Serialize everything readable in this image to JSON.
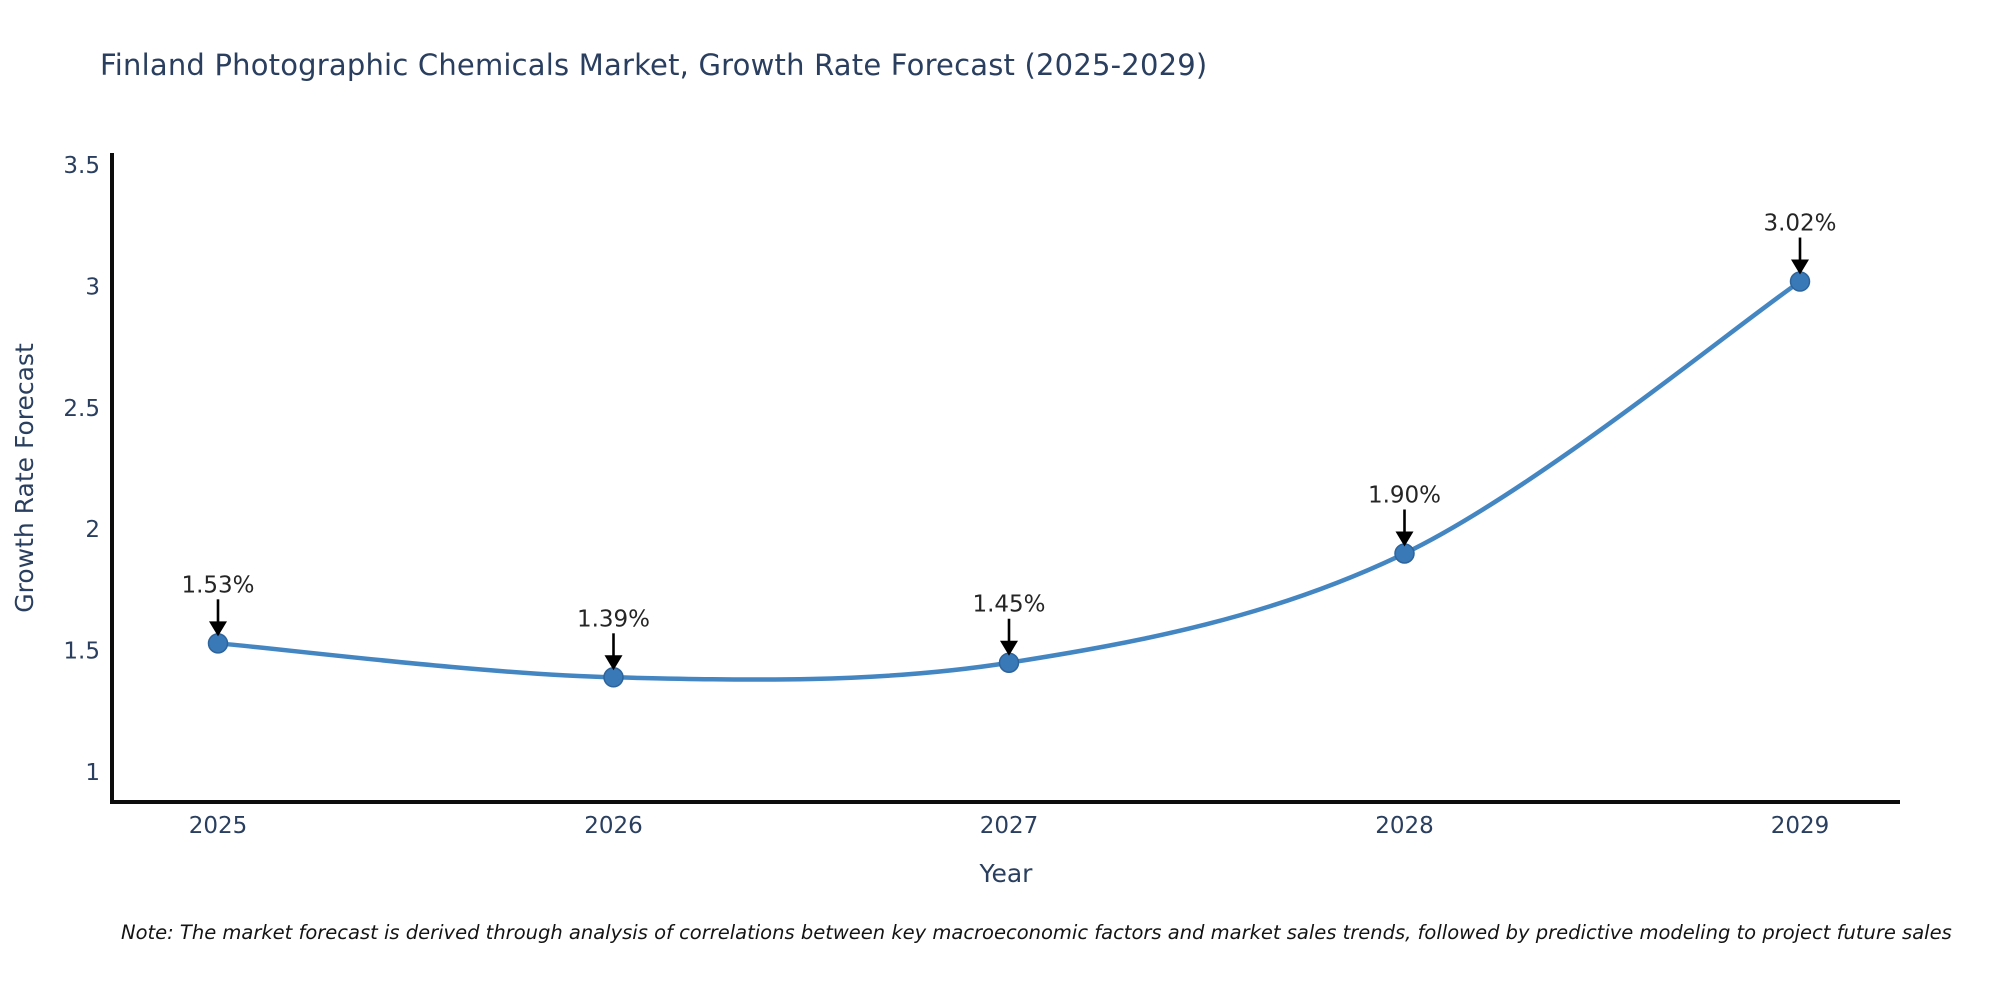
{
  "title": "Finland Photographic Chemicals Market, Growth Rate Forecast (2025-2029)",
  "note": "Note: The market forecast is derived through analysis of correlations between key macroeconomic factors and market sales trends, followed by predictive modeling to project future sales",
  "chart_data": {
    "type": "line",
    "title": "Finland Photographic Chemicals Market, Growth Rate Forecast (2025-2029)",
    "x": [
      2025,
      2026,
      2027,
      2028,
      2029
    ],
    "categories": [
      "2025",
      "2026",
      "2027",
      "2028",
      "2029"
    ],
    "values": [
      1.53,
      1.39,
      1.45,
      1.9,
      3.02
    ],
    "point_labels": [
      "1.53%",
      "1.39%",
      "1.45%",
      "1.90%",
      "3.02%"
    ],
    "xlabel": "Year",
    "ylabel": "Growth Rate Forecast",
    "yticks": [
      1,
      1.5,
      2,
      2.5,
      3,
      3.5
    ],
    "ytick_labels": [
      "1",
      "1.5",
      "2",
      "2.5",
      "3",
      "3.5"
    ],
    "ylim": [
      0.877,
      3.542
    ],
    "grid": false,
    "legend": "none",
    "line_shape": "spline",
    "colors": {
      "line": "#4486c2",
      "marker_fill": "#3a79b8",
      "marker_edge": "#2d649c",
      "axis_spine": "#0d0d0d",
      "tick_text": "#2a3f5f",
      "axis_title_text": "#2a3f5f",
      "annotation_text": "#252525",
      "annotation_arrow": "#000000",
      "title_text": "#2a3f5f",
      "background": "#ffffff"
    }
  }
}
